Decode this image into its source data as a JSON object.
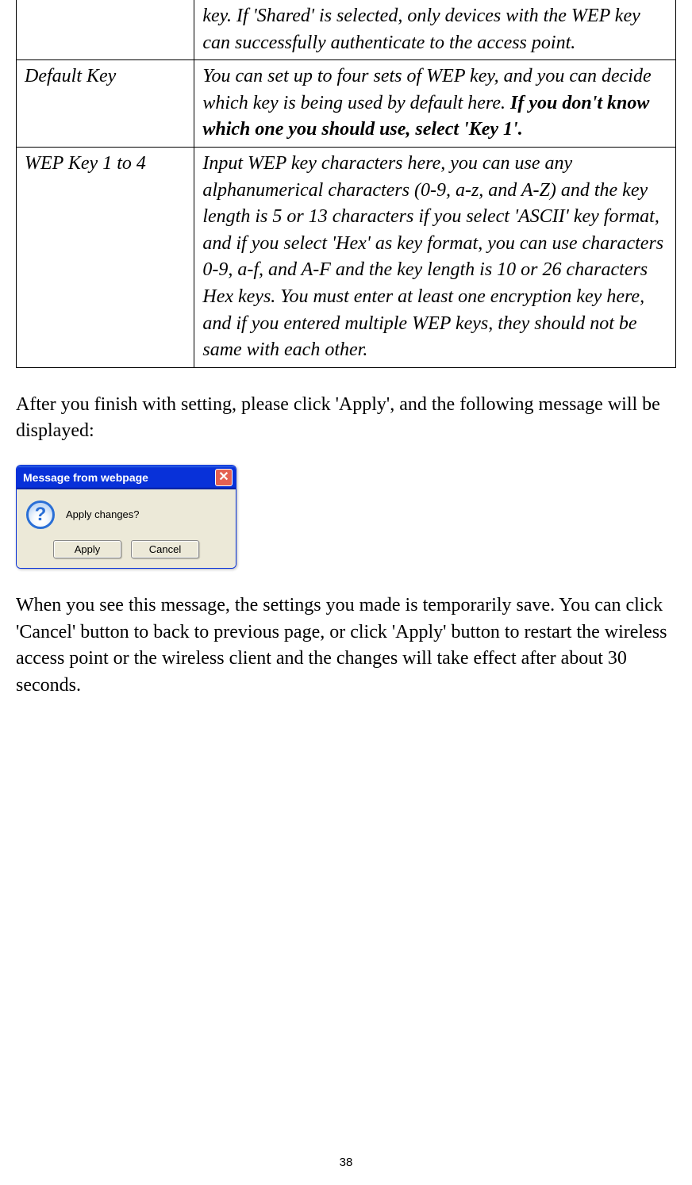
{
  "table": {
    "rows": [
      {
        "label": "",
        "description_parts": [
          {
            "text": "key. If 'Shared' is selected, only devices with the WEP key can successfully authenticate to the access point.",
            "bold": false
          }
        ],
        "no_top_border": true
      },
      {
        "label": "Default Key",
        "description_parts": [
          {
            "text": "You can set up to four sets of WEP key, and you can decide which key is being used by default here. ",
            "bold": false
          },
          {
            "text": "If you don't know which one you should use, select 'Key 1'.",
            "bold": true
          }
        ]
      },
      {
        "label": "WEP Key 1 to 4",
        "description_parts": [
          {
            "text": "Input WEP key characters here, you can use any alphanumerical characters (0-9, a-z, and A-Z) and the key length is 5 or 13 characters if you select 'ASCII' key format, and if you select 'Hex' as key format, you can use characters 0-9, a-f, and A-F and the key length is 10 or 26 characters Hex keys. You must enter at least one encryption key here, and if you entered multiple WEP keys, they should not be same with each other.",
            "bold": false
          }
        ]
      }
    ]
  },
  "paragraph1": "After you finish with setting, please click 'Apply', and the following message will be displayed:",
  "dialog": {
    "title": "Message from webpage",
    "message": "Apply changes?",
    "apply_button": "Apply",
    "cancel_button": "Cancel",
    "close_glyph": "✕",
    "question_glyph": "?"
  },
  "paragraph2": "When you see this message, the settings you made is temporarily save. You can click 'Cancel' button to back to previous page, or click 'Apply' button to restart the wireless access point or the wireless client and the changes will take effect after about 30 seconds.",
  "page_number": "38"
}
